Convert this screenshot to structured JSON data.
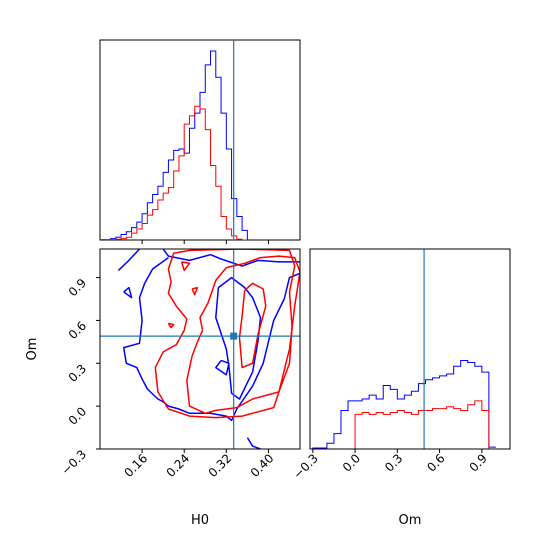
{
  "chart_data": {
    "type": "corner",
    "colors": {
      "blue": "#0000ff",
      "red": "#ff0000",
      "truth": "#1f77b4"
    },
    "truth": {
      "H0": 0.334,
      "Om": 0.49
    },
    "panels": {
      "h0_hist": {
        "type": "step-histogram",
        "xlim": [
          0.08,
          0.46
        ],
        "edges_start": 0.08,
        "bin_width": 0.01,
        "series": [
          {
            "color": "blue",
            "values": [
              0.3,
              0.3,
              1,
              2,
              4,
              6,
              9,
              13,
              19,
              27,
              33,
              39,
              49,
              58,
              65,
              66,
              63,
              81,
              92,
              107,
              127,
              137,
              118,
              92,
              66,
              30,
              17,
              7
            ]
          },
          {
            "color": "red",
            "values": [
              0,
              0,
              0.3,
              0.5,
              1,
              2,
              5,
              8,
              12,
              18,
              22,
              29,
              34,
              38,
              50,
              61,
              84,
              90,
              97,
              95,
              80,
              54,
              39,
              17,
              8,
              3,
              0.5,
              0
            ]
          }
        ]
      },
      "om_hist": {
        "type": "step-histogram",
        "xlim": [
          -0.32,
          1.1
        ],
        "edges_start": -0.3,
        "bin_width": 0.05,
        "series": [
          {
            "color": "blue",
            "values": [
              0.5,
              0.5,
              3,
              8,
              20,
              25,
              25,
              26,
              28,
              26,
              33,
              31,
              26,
              28,
              30,
              34,
              36,
              37,
              38,
              39,
              43,
              46,
              45,
              43,
              40,
              1
            ]
          },
          {
            "color": "red",
            "values": [
              0,
              0,
              0,
              0,
              0,
              0,
              18,
              19,
              18,
              19,
              18,
              19,
              20,
              19,
              18,
              20,
              20,
              21,
              21,
              22,
              21,
              20,
              23,
              25,
              20,
              0
            ]
          }
        ]
      },
      "contour": {
        "xlabel": "H0",
        "ylabel": "Om",
        "xlim": [
          0.08,
          0.46
        ],
        "ylim": [
          -0.3,
          1.1
        ],
        "xticks": [
          "0.16",
          "0.24",
          "0.32",
          "0.40"
        ],
        "yticks": [
          "−0.3",
          "0.0",
          "0.3",
          "0.6",
          "0.9"
        ],
        "contours": [
          {
            "color": "blue",
            "points": [
              [
                0.115,
                0.95
              ],
              [
                0.135,
                1.02
              ],
              [
                0.155,
                1.1
              ]
            ]
          },
          {
            "color": "blue",
            "points": [
              [
                0.2,
                1.1
              ],
              [
                0.21,
                1.05
              ],
              [
                0.25,
                1.02
              ],
              [
                0.29,
                1.06
              ],
              [
                0.31,
                1.03
              ],
              [
                0.35,
                0.98
              ],
              [
                0.38,
                1.02
              ],
              [
                0.42,
                1.01
              ],
              [
                0.46,
                1.01
              ]
            ]
          },
          {
            "color": "blue",
            "points": [
              [
                0.46,
                0.93
              ],
              [
                0.44,
                0.9
              ],
              [
                0.43,
                0.75
              ],
              [
                0.41,
                0.6
              ],
              [
                0.4,
                0.45
              ],
              [
                0.39,
                0.3
              ],
              [
                0.37,
                0.14
              ],
              [
                0.34,
                -0.02
              ],
              [
                0.33,
                -0.1
              ],
              [
                0.32,
                -0.07
              ],
              [
                0.29,
                -0.05
              ],
              [
                0.25,
                -0.05
              ],
              [
                0.23,
                -0.02
              ],
              [
                0.21,
                0.0
              ],
              [
                0.2,
                0.03
              ],
              [
                0.19,
                0.05
              ],
              [
                0.17,
                0.12
              ],
              [
                0.16,
                0.19
              ],
              [
                0.15,
                0.27
              ],
              [
                0.13,
                0.3
              ],
              [
                0.125,
                0.41
              ],
              [
                0.155,
                0.44
              ],
              [
                0.16,
                0.6
              ],
              [
                0.155,
                0.76
              ],
              [
                0.165,
                0.86
              ],
              [
                0.18,
                0.96
              ],
              [
                0.21,
                1.04
              ]
            ]
          },
          {
            "color": "blue",
            "points": [
              [
                0.125,
                0.8
              ],
              [
                0.14,
                0.76
              ],
              [
                0.135,
                0.83
              ],
              [
                0.125,
                0.8
              ]
            ]
          },
          {
            "color": "blue",
            "points": [
              [
                0.305,
                0.83
              ],
              [
                0.3,
                0.62
              ],
              [
                0.32,
                0.4
              ],
              [
                0.325,
                0.28
              ],
              [
                0.33,
                0.09
              ],
              [
                0.345,
                0.05
              ],
              [
                0.37,
                0.24
              ],
              [
                0.38,
                0.45
              ],
              [
                0.385,
                0.62
              ],
              [
                0.37,
                0.76
              ],
              [
                0.355,
                0.83
              ],
              [
                0.33,
                0.9
              ],
              [
                0.305,
                0.83
              ]
            ]
          },
          {
            "color": "blue",
            "points": [
              [
                0.31,
                0.32
              ],
              [
                0.3,
                0.27
              ],
              [
                0.32,
                0.22
              ],
              [
                0.325,
                0.3
              ],
              [
                0.31,
                0.32
              ]
            ]
          },
          {
            "color": "blue",
            "points": [
              [
                0.36,
                -0.22
              ],
              [
                0.37,
                -0.28
              ],
              [
                0.385,
                -0.3
              ]
            ]
          },
          {
            "color": "red",
            "points": [
              [
                0.275,
                0.53
              ],
              [
                0.27,
                0.62
              ],
              [
                0.285,
                0.72
              ],
              [
                0.3,
                0.88
              ],
              [
                0.32,
                0.97
              ],
              [
                0.355,
                1.0
              ],
              [
                0.385,
                1.04
              ],
              [
                0.42,
                1.05
              ],
              [
                0.45,
                1.04
              ],
              [
                0.46,
                0.94
              ],
              [
                0.45,
                0.7
              ],
              [
                0.44,
                0.4
              ],
              [
                0.42,
                0.1
              ],
              [
                0.37,
                0.05
              ],
              [
                0.34,
                -0.01
              ],
              [
                0.3,
                -0.03
              ],
              [
                0.28,
                -0.05
              ],
              [
                0.25,
                0.0
              ],
              [
                0.245,
                0.18
              ],
              [
                0.255,
                0.35
              ],
              [
                0.265,
                0.45
              ],
              [
                0.275,
                0.53
              ]
            ]
          },
          {
            "color": "red",
            "points": [
              [
                0.24,
                0.53
              ],
              [
                0.225,
                0.43
              ],
              [
                0.2,
                0.38
              ],
              [
                0.185,
                0.27
              ],
              [
                0.19,
                0.1
              ],
              [
                0.21,
                -0.02
              ],
              [
                0.25,
                -0.07
              ],
              [
                0.3,
                -0.08
              ],
              [
                0.35,
                -0.07
              ],
              [
                0.41,
                -0.01
              ],
              [
                0.42,
                0.1
              ],
              [
                0.44,
                0.3
              ],
              [
                0.445,
                0.55
              ],
              [
                0.44,
                0.8
              ],
              [
                0.45,
                0.98
              ],
              [
                0.44,
                1.09
              ],
              [
                0.35,
                1.1
              ],
              [
                0.25,
                1.09
              ],
              [
                0.22,
                1.07
              ],
              [
                0.21,
                0.96
              ],
              [
                0.215,
                0.87
              ],
              [
                0.21,
                0.79
              ],
              [
                0.225,
                0.7
              ],
              [
                0.245,
                0.61
              ],
              [
                0.24,
                0.53
              ]
            ]
          },
          {
            "color": "red",
            "points": [
              [
                0.355,
                0.81
              ],
              [
                0.35,
                0.63
              ],
              [
                0.345,
                0.48
              ],
              [
                0.35,
                0.27
              ],
              [
                0.37,
                0.3
              ],
              [
                0.38,
                0.5
              ],
              [
                0.395,
                0.7
              ],
              [
                0.39,
                0.82
              ],
              [
                0.37,
                0.86
              ],
              [
                0.355,
                0.81
              ]
            ]
          },
          {
            "color": "red",
            "points": [
              [
                0.255,
                0.82
              ],
              [
                0.26,
                0.78
              ],
              [
                0.265,
                0.83
              ],
              [
                0.255,
                0.82
              ]
            ]
          },
          {
            "color": "red",
            "points": [
              [
                0.21,
                0.58
              ],
              [
                0.22,
                0.57
              ],
              [
                0.215,
                0.55
              ],
              [
                0.21,
                0.58
              ]
            ]
          },
          {
            "color": "red",
            "points": [
              [
                0.235,
                1.01
              ],
              [
                0.24,
                0.95
              ],
              [
                0.25,
                1.0
              ],
              [
                0.235,
                1.01
              ]
            ]
          }
        ]
      },
      "om_hist_axis": {
        "xlabel": "Om",
        "xticks": [
          "−0.3",
          "0.0",
          "0.3",
          "0.6",
          "0.9"
        ]
      }
    }
  }
}
